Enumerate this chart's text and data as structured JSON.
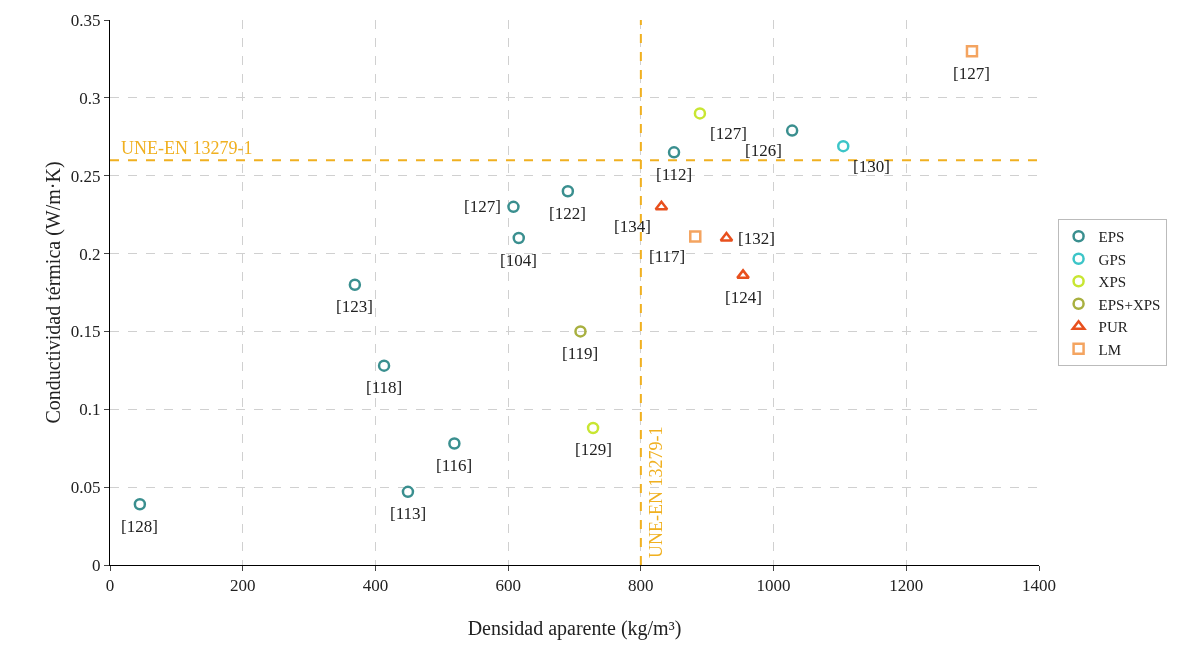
{
  "chart_data": {
    "type": "scatter",
    "xlabel": "Densidad aparente (kg/m³)",
    "ylabel": "Conductividad térmica (W/m·K)",
    "xlim": [
      0,
      1400
    ],
    "xticks": [
      0,
      200,
      400,
      600,
      800,
      1000,
      1200,
      1400
    ],
    "ylim": [
      0,
      0.35
    ],
    "yticks": [
      0,
      0.05,
      0.1,
      0.15,
      0.2,
      0.25,
      0.3,
      0.35
    ],
    "grid": true,
    "legend": "right",
    "series": [
      {
        "name": "EPS",
        "color": "#3a8f8f",
        "marker": "circle",
        "x": [
          45,
          369,
          413,
          449,
          519,
          608,
          616,
          690,
          850,
          1028
        ],
        "values": [
          0.039,
          0.18,
          0.128,
          0.047,
          0.078,
          0.23,
          0.21,
          0.24,
          0.265,
          0.279
        ]
      },
      {
        "name": "GPS",
        "color": "#3cc5c8",
        "marker": "circle",
        "x": [
          1105
        ],
        "values": [
          0.269
        ]
      },
      {
        "name": "XPS",
        "color": "#c8e632",
        "marker": "circle",
        "x": [
          889,
          728
        ],
        "values": [
          0.29,
          0.088
        ]
      },
      {
        "name": "EPS+XPS",
        "color": "#a8b040",
        "marker": "circle",
        "x": [
          709
        ],
        "values": [
          0.15
        ]
      },
      {
        "name": "PUR",
        "color": "#e8501e",
        "marker": "triangle",
        "x": [
          831,
          929,
          954
        ],
        "values": [
          0.23,
          0.21,
          0.186
        ]
      },
      {
        "name": "LM",
        "color": "#f4a460",
        "marker": "square",
        "x": [
          882,
          1299
        ],
        "values": [
          0.211,
          0.33
        ]
      }
    ],
    "annotations": [
      {
        "text": "[128]",
        "x": 45,
        "y": 0.039
      },
      {
        "text": "[123]",
        "x": 369,
        "y": 0.18
      },
      {
        "text": "[118]",
        "x": 413,
        "y": 0.128
      },
      {
        "text": "[113]",
        "x": 449,
        "y": 0.047
      },
      {
        "text": "[116]",
        "x": 519,
        "y": 0.078
      },
      {
        "text": "[127]",
        "x": 608,
        "y": 0.23
      },
      {
        "text": "[104]",
        "x": 616,
        "y": 0.21
      },
      {
        "text": "[122]",
        "x": 690,
        "y": 0.24
      },
      {
        "text": "[112]",
        "x": 850,
        "y": 0.265
      },
      {
        "text": "[126]",
        "x": 1028,
        "y": 0.279
      },
      {
        "text": "[130]",
        "x": 1105,
        "y": 0.269
      },
      {
        "text": "[127]",
        "x": 889,
        "y": 0.29
      },
      {
        "text": "[129]",
        "x": 728,
        "y": 0.088
      },
      {
        "text": "[119]",
        "x": 709,
        "y": 0.15
      },
      {
        "text": "[134]",
        "x": 831,
        "y": 0.23
      },
      {
        "text": "[132]",
        "x": 929,
        "y": 0.21
      },
      {
        "text": "[124]",
        "x": 954,
        "y": 0.186
      },
      {
        "text": "[117]",
        "x": 882,
        "y": 0.211
      },
      {
        "text": "[127]",
        "x": 1299,
        "y": 0.33
      }
    ],
    "ref_lines": [
      {
        "axis": "y",
        "value": 0.26,
        "label": "UNE-EN 13279-1",
        "color": "#f0b020",
        "line_style": "dashed"
      },
      {
        "axis": "x",
        "value": 800,
        "label": "UNE-EN 13279-1",
        "color": "#f0b020",
        "line_style": "dashed"
      }
    ]
  }
}
